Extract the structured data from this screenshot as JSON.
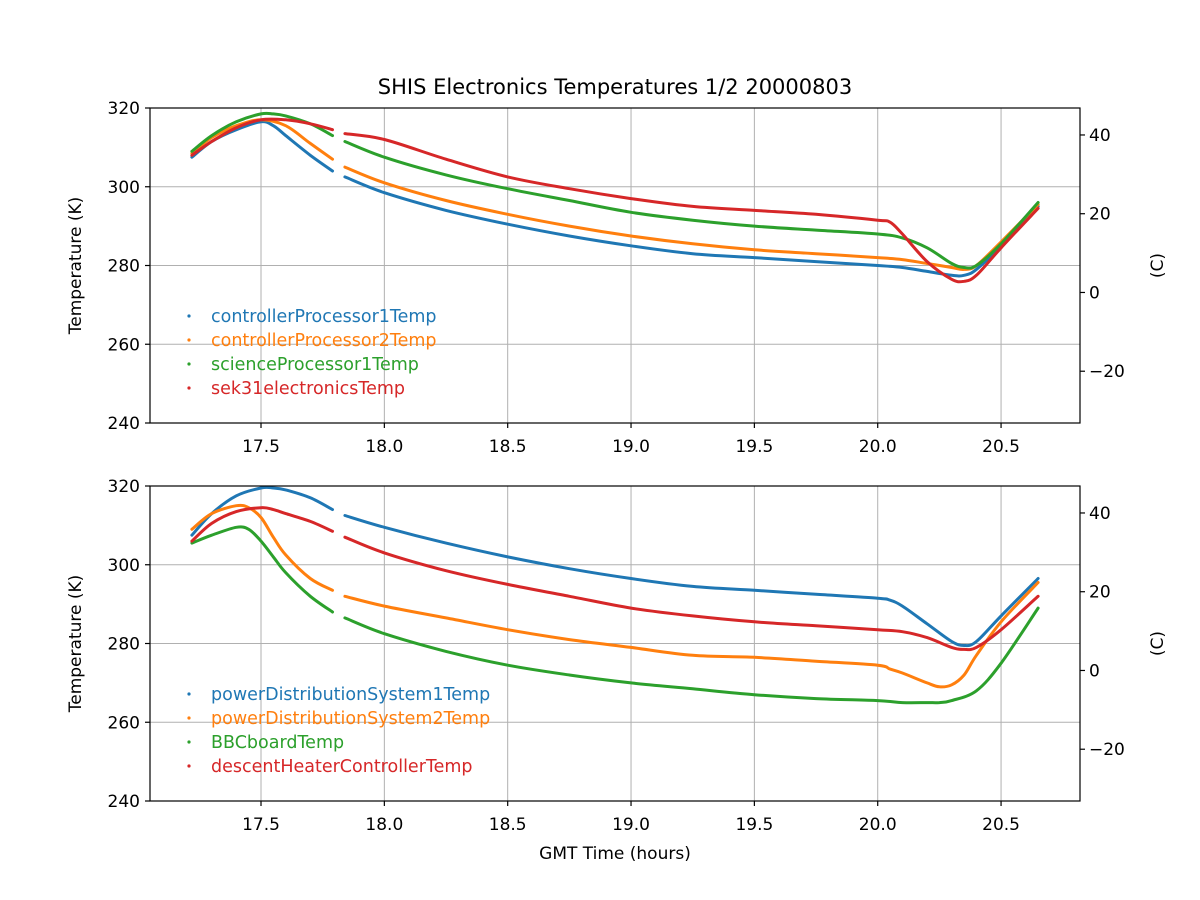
{
  "colors": {
    "c0": "#1f77b4",
    "c1": "#ff7f0e",
    "c2": "#2ca02c",
    "c3": "#d62728",
    "grid": "#b0b0b0"
  },
  "figure": {
    "title": "SHIS Electronics Temperatures 1/2 20000803",
    "xlabel": "GMT Time (hours)"
  },
  "chart_data": [
    {
      "type": "scatter",
      "panel": "top",
      "title": "SHIS Electronics Temperatures 1/2 20000803",
      "xlabel": "",
      "ylabel": "Temperature (K)",
      "ylabel_right": "(C)",
      "xlim": [
        17.05,
        20.82
      ],
      "ylim": [
        240,
        320
      ],
      "right_ylim": [
        -33.15,
        46.85
      ],
      "xticks": [
        17.5,
        18.0,
        18.5,
        19.0,
        19.5,
        20.0,
        20.5
      ],
      "xtick_labels": [
        "17.5",
        "18.0",
        "18.5",
        "19.0",
        "19.5",
        "20.0",
        "20.5"
      ],
      "yticks": [
        240,
        260,
        280,
        300,
        320
      ],
      "ytick_labels": [
        "240",
        "260",
        "280",
        "300",
        "320"
      ],
      "right_yticks": [
        -20,
        0,
        20,
        40
      ],
      "right_ytick_labels": [
        "−20",
        "0",
        "20",
        "40"
      ],
      "grid": true,
      "legend_position": "lower-left",
      "gap": [
        17.79,
        17.84
      ],
      "series": [
        {
          "name": "controllerProcessor1Temp",
          "color": "#1f77b4",
          "x": [
            17.22,
            17.3,
            17.4,
            17.5,
            17.55,
            17.6,
            17.7,
            17.79,
            17.84,
            18.0,
            18.25,
            18.5,
            18.75,
            19.0,
            19.25,
            19.5,
            19.75,
            20.0,
            20.1,
            20.2,
            20.3,
            20.35,
            20.4,
            20.5,
            20.65
          ],
          "y": [
            307.5,
            311.5,
            314.5,
            316.5,
            315.5,
            313.0,
            308.0,
            304.0,
            302.5,
            298.5,
            294.0,
            290.5,
            287.5,
            285.0,
            283.0,
            282.0,
            281.0,
            280.0,
            279.5,
            278.5,
            277.5,
            277.5,
            279.0,
            285.0,
            295.0
          ]
        },
        {
          "name": "controllerProcessor2Temp",
          "color": "#ff7f0e",
          "x": [
            17.22,
            17.3,
            17.4,
            17.5,
            17.6,
            17.7,
            17.79,
            17.84,
            18.0,
            18.25,
            18.5,
            18.75,
            19.0,
            19.25,
            19.5,
            19.75,
            20.0,
            20.1,
            20.2,
            20.3,
            20.35,
            20.4,
            20.5,
            20.65
          ],
          "y": [
            308.5,
            312.5,
            315.5,
            317.0,
            315.5,
            311.0,
            307.0,
            305.0,
            301.0,
            296.5,
            293.0,
            290.0,
            287.5,
            285.5,
            284.0,
            283.0,
            282.0,
            281.5,
            280.5,
            279.5,
            279.0,
            280.0,
            286.0,
            295.5
          ]
        },
        {
          "name": "scienceProcessor1Temp",
          "color": "#2ca02c",
          "x": [
            17.22,
            17.3,
            17.4,
            17.5,
            17.55,
            17.6,
            17.7,
            17.79,
            17.84,
            18.0,
            18.25,
            18.5,
            18.75,
            19.0,
            19.25,
            19.5,
            19.75,
            20.0,
            20.1,
            20.2,
            20.3,
            20.35,
            20.4,
            20.5,
            20.65
          ],
          "y": [
            309.0,
            313.0,
            316.5,
            318.5,
            318.5,
            318.0,
            316.0,
            313.0,
            311.5,
            307.5,
            303.0,
            299.5,
            296.5,
            293.5,
            291.5,
            290.0,
            289.0,
            288.0,
            287.0,
            284.5,
            280.5,
            279.5,
            280.0,
            285.5,
            296.0
          ]
        },
        {
          "name": "sek31electronicsTemp",
          "color": "#d62728",
          "x": [
            17.22,
            17.3,
            17.4,
            17.5,
            17.6,
            17.7,
            17.79,
            17.84,
            18.0,
            18.25,
            18.5,
            18.75,
            19.0,
            19.25,
            19.5,
            19.75,
            20.0,
            20.05,
            20.1,
            20.2,
            20.3,
            20.35,
            20.4,
            20.5,
            20.65
          ],
          "y": [
            308.0,
            311.5,
            315.0,
            317.0,
            317.0,
            316.0,
            314.5,
            313.5,
            312.0,
            307.0,
            302.5,
            299.5,
            297.0,
            295.0,
            294.0,
            293.0,
            291.5,
            291.0,
            288.0,
            281.0,
            276.5,
            276.0,
            277.5,
            284.5,
            294.5
          ]
        }
      ]
    },
    {
      "type": "scatter",
      "panel": "bottom",
      "title": "",
      "xlabel": "GMT Time (hours)",
      "ylabel": "Temperature (K)",
      "ylabel_right": "(C)",
      "xlim": [
        17.05,
        20.82
      ],
      "ylim": [
        240,
        320
      ],
      "right_ylim": [
        -33.15,
        46.85
      ],
      "xticks": [
        17.5,
        18.0,
        18.5,
        19.0,
        19.5,
        20.0,
        20.5
      ],
      "xtick_labels": [
        "17.5",
        "18.0",
        "18.5",
        "19.0",
        "19.5",
        "20.0",
        "20.5"
      ],
      "yticks": [
        240,
        260,
        280,
        300,
        320
      ],
      "ytick_labels": [
        "240",
        "260",
        "280",
        "300",
        "320"
      ],
      "right_yticks": [
        -20,
        0,
        20,
        40
      ],
      "right_ytick_labels": [
        "−20",
        "0",
        "20",
        "40"
      ],
      "grid": true,
      "legend_position": "lower-left",
      "gap": [
        17.79,
        17.84
      ],
      "series": [
        {
          "name": "powerDistributionSystem1Temp",
          "color": "#1f77b4",
          "x": [
            17.22,
            17.3,
            17.4,
            17.5,
            17.55,
            17.6,
            17.7,
            17.79,
            17.84,
            18.0,
            18.25,
            18.5,
            18.75,
            19.0,
            19.25,
            19.5,
            19.75,
            20.0,
            20.05,
            20.1,
            20.2,
            20.3,
            20.35,
            20.4,
            20.5,
            20.65
          ],
          "y": [
            307.5,
            313.0,
            317.5,
            319.5,
            319.5,
            319.0,
            317.0,
            314.0,
            312.5,
            309.5,
            305.5,
            302.0,
            299.0,
            296.5,
            294.5,
            293.5,
            292.5,
            291.5,
            291.0,
            289.5,
            285.0,
            280.5,
            279.5,
            280.5,
            287.0,
            296.5
          ]
        },
        {
          "name": "powerDistributionSystem2Temp",
          "color": "#ff7f0e",
          "x": [
            17.22,
            17.3,
            17.4,
            17.45,
            17.5,
            17.55,
            17.6,
            17.7,
            17.79,
            17.84,
            18.0,
            18.25,
            18.5,
            18.75,
            19.0,
            19.25,
            19.5,
            19.75,
            20.0,
            20.05,
            20.1,
            20.2,
            20.25,
            20.3,
            20.35,
            20.4,
            20.5,
            20.65
          ],
          "y": [
            309.0,
            313.0,
            315.0,
            314.5,
            312.0,
            307.0,
            302.5,
            296.5,
            293.5,
            292.0,
            289.5,
            286.5,
            283.5,
            281.0,
            279.0,
            277.0,
            276.5,
            275.5,
            274.5,
            273.5,
            272.5,
            270.0,
            269.0,
            269.5,
            272.0,
            277.0,
            285.5,
            295.5
          ]
        },
        {
          "name": "BBCboardTemp",
          "color": "#2ca02c",
          "x": [
            17.22,
            17.3,
            17.4,
            17.45,
            17.5,
            17.55,
            17.6,
            17.7,
            17.79,
            17.84,
            18.0,
            18.25,
            18.5,
            18.75,
            19.0,
            19.25,
            19.5,
            19.75,
            20.0,
            20.1,
            20.2,
            20.25,
            20.3,
            20.4,
            20.5,
            20.65
          ],
          "y": [
            305.5,
            307.5,
            309.5,
            309.0,
            306.0,
            302.0,
            298.0,
            292.0,
            288.0,
            286.5,
            282.5,
            278.0,
            274.5,
            272.0,
            270.0,
            268.5,
            267.0,
            266.0,
            265.5,
            265.0,
            265.0,
            265.0,
            265.5,
            268.0,
            275.0,
            289.0
          ]
        },
        {
          "name": "descentHeaterControllerTemp",
          "color": "#d62728",
          "x": [
            17.22,
            17.3,
            17.4,
            17.5,
            17.55,
            17.6,
            17.7,
            17.79,
            17.84,
            18.0,
            18.25,
            18.5,
            18.75,
            19.0,
            19.25,
            19.5,
            19.75,
            20.0,
            20.1,
            20.2,
            20.3,
            20.35,
            20.4,
            20.5,
            20.65
          ],
          "y": [
            306.0,
            310.5,
            313.5,
            314.5,
            314.0,
            313.0,
            311.0,
            308.5,
            307.0,
            303.0,
            298.5,
            295.0,
            292.0,
            289.0,
            287.0,
            285.5,
            284.5,
            283.5,
            283.0,
            281.5,
            279.0,
            278.5,
            279.0,
            283.5,
            292.0
          ]
        }
      ]
    }
  ]
}
